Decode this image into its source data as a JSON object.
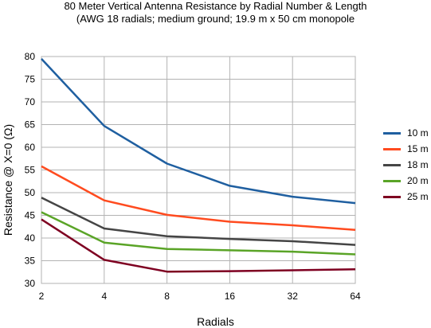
{
  "chart_data": {
    "type": "line",
    "title": "80 Meter Vertical Antenna Resistance by Radial Number & Length",
    "subtitle": "(AWG 18 radials; medium ground; 19.9 m x 50 cm monopole",
    "xlabel": "Radials",
    "ylabel": "Resistance @ X=0 (Ω)",
    "x": [
      "2",
      "4",
      "8",
      "16",
      "32",
      "64"
    ],
    "ylim": [
      30,
      80
    ],
    "yticks": [
      "30",
      "35",
      "40",
      "45",
      "50",
      "55",
      "60",
      "65",
      "70",
      "75",
      "80"
    ],
    "grid": true,
    "legend_position": "right",
    "series": [
      {
        "name": "10 m",
        "color": "#1f5fa0",
        "values": [
          79.5,
          64.7,
          56.4,
          51.5,
          49.1,
          47.7
        ]
      },
      {
        "name": "15 m",
        "color": "#ff4b1f",
        "values": [
          55.8,
          48.3,
          45.1,
          43.6,
          42.8,
          41.8
        ]
      },
      {
        "name": "18 m",
        "color": "#454545",
        "values": [
          48.9,
          42.1,
          40.4,
          39.8,
          39.3,
          38.5
        ]
      },
      {
        "name": "20 m",
        "color": "#5aa427",
        "values": [
          45.7,
          39.0,
          37.6,
          37.3,
          37.0,
          36.4
        ]
      },
      {
        "name": "25 m",
        "color": "#7e0021",
        "values": [
          44.1,
          35.2,
          32.6,
          32.7,
          32.9,
          33.1
        ]
      }
    ]
  }
}
